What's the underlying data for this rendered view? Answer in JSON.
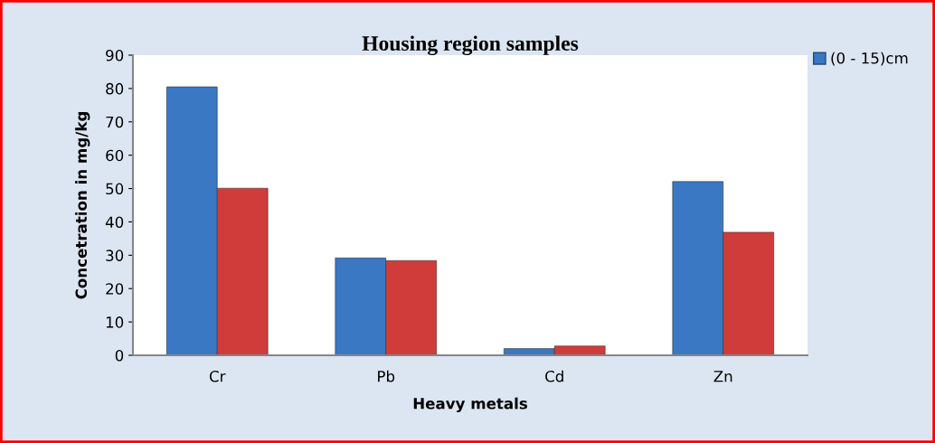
{
  "chart_data": {
    "type": "bar",
    "title": "Housing region samples",
    "xlabel": "Heavy metals",
    "ylabel": "Concetration in mg/kg",
    "categories": [
      "Cr",
      "Pb",
      "Cd",
      "Zn"
    ],
    "series": [
      {
        "name": "(0 - 15)cm",
        "color": "#3a78c4",
        "values": [
          80.5,
          29.2,
          2.0,
          52.1
        ]
      },
      {
        "color": "#d03c3a",
        "values": [
          50.1,
          28.4,
          2.8,
          36.9
        ]
      }
    ],
    "ylim": [
      0,
      90
    ],
    "yticks": [
      0,
      10,
      20,
      30,
      40,
      50,
      60,
      70,
      80,
      90
    ],
    "grid": false,
    "legend": "top right"
  }
}
